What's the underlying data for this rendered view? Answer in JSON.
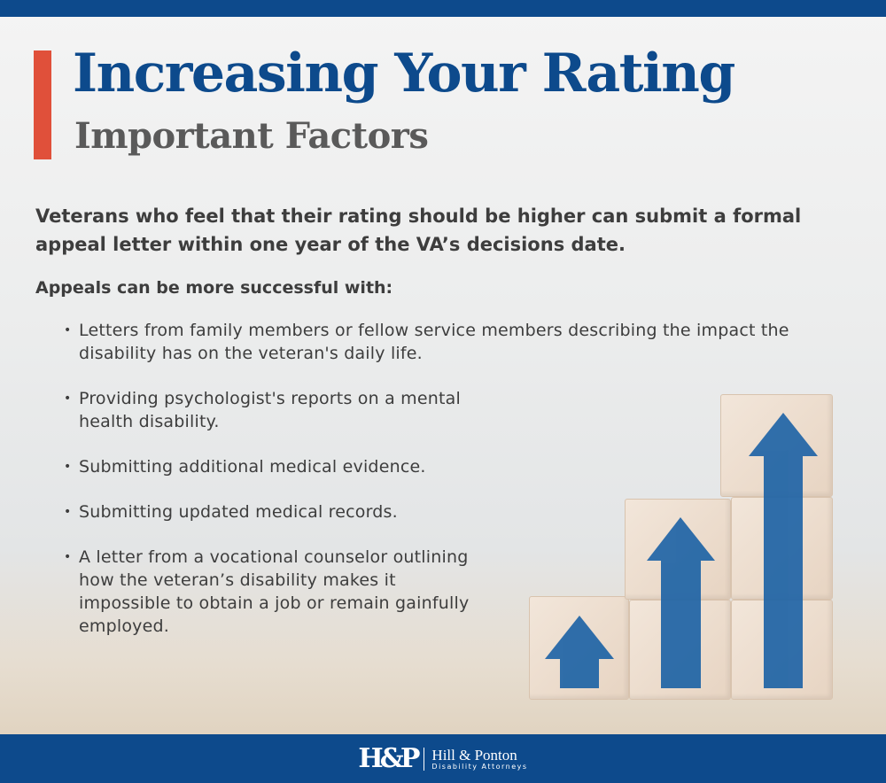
{
  "header": {
    "title": "Increasing Your Rating",
    "subtitle": "Important Factors"
  },
  "intro": "Veterans who feel that their rating should be higher can submit a formal appeal letter within one year of the VA’s decisions date.",
  "lead": "Appeals can be more successful with:",
  "bullets": [
    "Letters from family members or fellow service members describing the impact the disability has on the veteran's daily life.",
    "Providing psychologist's reports on a mental health disability.",
    "Submitting additional medical evidence.",
    "Submitting updated medical records.",
    "A letter from a vocational counselor outlining how the veteran’s disability makes it impossible to obtain a job or remain gainfully employed."
  ],
  "image": {
    "subject": "wooden blocks with rising arrows",
    "arrow_color": "#1f64a6"
  },
  "footer": {
    "logo_mark": "H&P",
    "logo_name": "Hill & Ponton",
    "logo_tagline": "Disability Attorneys"
  },
  "colors": {
    "brand": "#0d4a8c",
    "accent": "#e0503a",
    "text": "#3d3d3d"
  }
}
